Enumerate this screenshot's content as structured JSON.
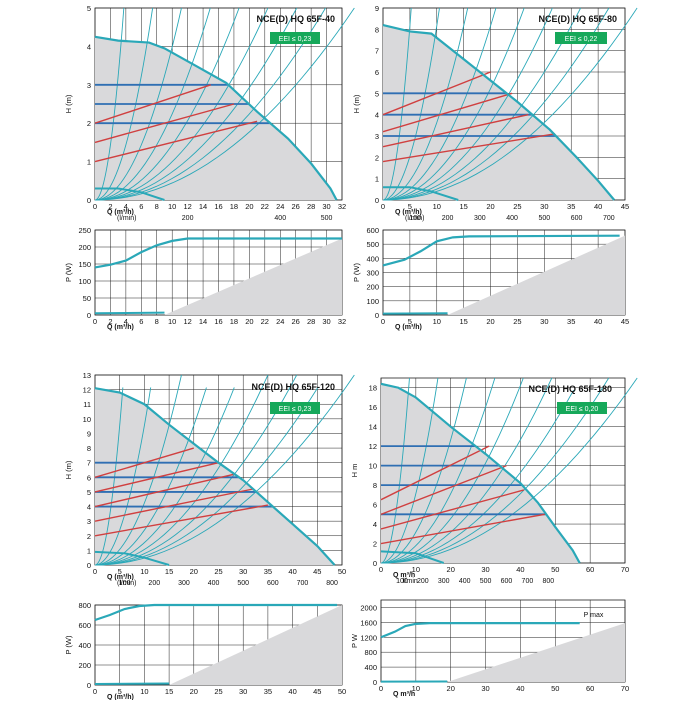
{
  "colors": {
    "envelope": "#2aa8b8",
    "fill": "#d9d9db",
    "blue": "#2f6fb3",
    "red": "#d04040",
    "eei_bg": "#16a85a",
    "grid": "#222222",
    "curve": "#2aa8b8"
  },
  "chart_data": [
    {
      "type": "line",
      "title": "NCE(D) HQ 65F-40",
      "eei": "EEI ≤ 0,23",
      "head": {
        "ylabel": "H (m)",
        "xlabel": "Q (m³/h)",
        "xlabel2": "(l/min)",
        "xticks": [
          "0",
          "2",
          "4",
          "6",
          "8",
          "10",
          "12",
          "14",
          "16",
          "18",
          "20",
          "22",
          "24",
          "26",
          "28",
          "30",
          "32"
        ],
        "yticks": [
          "0",
          "1",
          "2",
          "3",
          "4",
          "5"
        ],
        "x2ticks": [
          "200",
          "400",
          "500"
        ],
        "xlim": [
          0,
          32
        ],
        "ylim": [
          0,
          5
        ],
        "envelope": [
          [
            0,
            4.25
          ],
          [
            3,
            4.15
          ],
          [
            7,
            4.1
          ],
          [
            9,
            3.95
          ],
          [
            13,
            3.5
          ],
          [
            17,
            3.05
          ],
          [
            21,
            2.3
          ],
          [
            25,
            1.6
          ],
          [
            28,
            0.95
          ],
          [
            30.5,
            0.3
          ],
          [
            31.3,
            0
          ]
        ],
        "blue_levels": [
          2,
          2.5,
          3
        ],
        "red_lines": [
          [
            [
              0,
              1.0
            ],
            [
              21,
              2.05
            ]
          ],
          [
            [
              0,
              1.5
            ],
            [
              18,
              2.5
            ]
          ],
          [
            [
              0,
              2.0
            ],
            [
              15,
              3.0
            ]
          ]
        ],
        "min_curve": [
          [
            0,
            0.3
          ],
          [
            3,
            0.3
          ],
          [
            6,
            0.2
          ],
          [
            9,
            0
          ]
        ]
      },
      "power": {
        "ylabel": "P (W)",
        "xlabel": "Q (m³/h)",
        "xticks": [
          "0",
          "2",
          "4",
          "6",
          "8",
          "10",
          "12",
          "14",
          "16",
          "18",
          "20",
          "22",
          "24",
          "26",
          "28",
          "30",
          "32"
        ],
        "yticks": [
          "0",
          "50",
          "100",
          "150",
          "200",
          "250"
        ],
        "xlim": [
          0,
          32
        ],
        "ylim": [
          0,
          250
        ],
        "max_curve": [
          [
            0,
            140
          ],
          [
            2,
            148
          ],
          [
            4,
            160
          ],
          [
            6,
            185
          ],
          [
            8,
            205
          ],
          [
            10,
            218
          ],
          [
            12,
            225
          ],
          [
            32,
            225
          ]
        ],
        "min_curve": [
          [
            0,
            5
          ],
          [
            9,
            7
          ]
        ]
      }
    },
    {
      "type": "line",
      "title": "NCE(D) HQ 65F-80",
      "eei": "EEI ≤ 0,22",
      "head": {
        "ylabel": "H (m)",
        "xlabel": "Q (m³/h)",
        "xlabel2": "(l/min)",
        "xticks": [
          "0",
          "5",
          "10",
          "15",
          "20",
          "25",
          "30",
          "35",
          "40",
          "45"
        ],
        "yticks": [
          "0",
          "1",
          "2",
          "3",
          "4",
          "5",
          "6",
          "7",
          "8",
          "9"
        ],
        "x2ticks": [
          "100",
          "200",
          "300",
          "400",
          "500",
          "600",
          "700"
        ],
        "xlim": [
          0,
          45
        ],
        "ylim": [
          0,
          9
        ],
        "envelope": [
          [
            0,
            8.2
          ],
          [
            5,
            7.9
          ],
          [
            9,
            7.8
          ],
          [
            13,
            7.0
          ],
          [
            19,
            5.8
          ],
          [
            25,
            4.6
          ],
          [
            31,
            3.3
          ],
          [
            36,
            2.0
          ],
          [
            40,
            0.9
          ],
          [
            43,
            0
          ]
        ],
        "blue_levels": [
          3,
          4,
          5
        ],
        "red_lines": [
          [
            [
              0,
              1.8
            ],
            [
              32,
              3.1
            ]
          ],
          [
            [
              0,
              2.5
            ],
            [
              27,
              4.0
            ]
          ],
          [
            [
              0,
              3.2
            ],
            [
              24,
              5.0
            ]
          ],
          [
            [
              0,
              4.0
            ],
            [
              20,
              6.0
            ]
          ]
        ],
        "min_curve": [
          [
            0,
            0.6
          ],
          [
            5,
            0.6
          ],
          [
            9,
            0.4
          ],
          [
            14,
            0
          ]
        ]
      },
      "power": {
        "ylabel": "P (W)",
        "xlabel": "Q (m³/h)",
        "xticks": [
          "0",
          "5",
          "10",
          "15",
          "20",
          "25",
          "30",
          "35",
          "40",
          "45"
        ],
        "yticks": [
          "0",
          "100",
          "200",
          "300",
          "400",
          "500",
          "600"
        ],
        "xlim": [
          0,
          45
        ],
        "ylim": [
          0,
          600
        ],
        "max_curve": [
          [
            0,
            350
          ],
          [
            4,
            390
          ],
          [
            7,
            450
          ],
          [
            10,
            520
          ],
          [
            13,
            548
          ],
          [
            16,
            555
          ],
          [
            44,
            560
          ]
        ],
        "min_curve": [
          [
            0,
            10
          ],
          [
            12,
            12
          ]
        ]
      }
    },
    {
      "type": "line",
      "title": "NCE(D) HQ 65F-120",
      "eei": "EEI ≤ 0,23",
      "head": {
        "ylabel": "H (m)",
        "xlabel": "Q (m³/h)",
        "xlabel2": "(l/min)",
        "xticks": [
          "0",
          "5",
          "10",
          "15",
          "20",
          "25",
          "30",
          "35",
          "40",
          "45",
          "50"
        ],
        "yticks": [
          "0",
          "1",
          "2",
          "3",
          "4",
          "5",
          "6",
          "7",
          "8",
          "9",
          "10",
          "11",
          "12",
          "13"
        ],
        "x2ticks": [
          "100",
          "200",
          "300",
          "400",
          "500",
          "600",
          "700",
          "800"
        ],
        "xlim": [
          0,
          50
        ],
        "ylim": [
          0,
          13
        ],
        "envelope": [
          [
            0,
            12.1
          ],
          [
            5,
            11.8
          ],
          [
            10,
            11.0
          ],
          [
            15,
            9.6
          ],
          [
            20,
            8.3
          ],
          [
            25,
            7.0
          ],
          [
            30,
            5.8
          ],
          [
            35,
            4.3
          ],
          [
            40,
            2.8
          ],
          [
            45,
            1.3
          ],
          [
            48.5,
            0
          ]
        ],
        "blue_levels": [
          4,
          5,
          6,
          7
        ],
        "red_lines": [
          [
            [
              0,
              2.0
            ],
            [
              35,
              4.1
            ]
          ],
          [
            [
              0,
              3.0
            ],
            [
              32,
              5.2
            ]
          ],
          [
            [
              0,
              4.0
            ],
            [
              28,
              6.2
            ]
          ],
          [
            [
              0,
              5.0
            ],
            [
              25,
              7.0
            ]
          ],
          [
            [
              0,
              6.0
            ],
            [
              20,
              8.0
            ]
          ]
        ],
        "min_curve": [
          [
            0,
            0.9
          ],
          [
            6,
            0.8
          ],
          [
            10,
            0.5
          ],
          [
            15,
            0
          ]
        ]
      },
      "power": {
        "ylabel": "P (W)",
        "xlabel": "Q (m³/h)",
        "xticks": [
          "0",
          "5",
          "10",
          "15",
          "20",
          "25",
          "30",
          "35",
          "40",
          "45",
          "50"
        ],
        "yticks": [
          "0",
          "200",
          "400",
          "600",
          "800"
        ],
        "xlim": [
          0,
          50
        ],
        "ylim": [
          0,
          800
        ],
        "max_curve": [
          [
            0,
            650
          ],
          [
            3,
            700
          ],
          [
            6,
            760
          ],
          [
            9,
            790
          ],
          [
            12,
            800
          ],
          [
            49,
            800
          ]
        ],
        "min_curve": [
          [
            0,
            10
          ],
          [
            15,
            15
          ]
        ]
      }
    },
    {
      "type": "line",
      "title": "NCE(D) HQ 65F-180",
      "eei": "EEI ≤ 0,20",
      "head": {
        "ylabel": "H m",
        "xlabel": "Q m³/h",
        "xlabel2": "l/min",
        "xticks": [
          "0",
          "10",
          "20",
          "30",
          "40",
          "50",
          "60",
          "70"
        ],
        "yticks": [
          "0",
          "2",
          "4",
          "6",
          "8",
          "10",
          "12",
          "14",
          "16",
          "18"
        ],
        "x2ticks": [
          "100",
          "200",
          "300",
          "400",
          "500",
          "600",
          "700",
          "800"
        ],
        "xlim": [
          0,
          70
        ],
        "ylim": [
          0,
          19
        ],
        "envelope": [
          [
            0,
            18.4
          ],
          [
            5,
            18.0
          ],
          [
            10,
            17.0
          ],
          [
            15,
            15.5
          ],
          [
            20,
            14.0
          ],
          [
            25,
            12.6
          ],
          [
            30,
            11.2
          ],
          [
            35,
            9.7
          ],
          [
            40,
            8.2
          ],
          [
            45,
            6.2
          ],
          [
            50,
            3.7
          ],
          [
            55,
            1.3
          ],
          [
            57,
            0
          ]
        ],
        "blue_levels": [
          5,
          8,
          10,
          12
        ],
        "red_lines": [
          [
            [
              0,
              2.0
            ],
            [
              47,
              5.0
            ]
          ],
          [
            [
              0,
              3.5
            ],
            [
              41,
              7.5
            ]
          ],
          [
            [
              0,
              5.0
            ],
            [
              36,
              10.0
            ]
          ],
          [
            [
              0,
              6.5
            ],
            [
              31,
              12.0
            ]
          ]
        ],
        "min_curve": [
          [
            0,
            1.2
          ],
          [
            10,
            1.0
          ],
          [
            14,
            0.5
          ],
          [
            18,
            0
          ]
        ]
      },
      "power": {
        "ylabel": "P W",
        "xlabel": "Q m³/h",
        "xticks": [
          "0",
          "10",
          "20",
          "30",
          "40",
          "50",
          "60",
          "70"
        ],
        "yticks": [
          "0",
          "400",
          "800",
          "1200",
          "1600",
          "2000"
        ],
        "xlim": [
          0,
          70
        ],
        "ylim": [
          0,
          2200
        ],
        "max_curve": [
          [
            0,
            1200
          ],
          [
            4,
            1350
          ],
          [
            7,
            1500
          ],
          [
            10,
            1560
          ],
          [
            14,
            1580
          ],
          [
            57,
            1580
          ]
        ],
        "min_curve": [
          [
            0,
            10
          ],
          [
            19,
            15
          ]
        ],
        "pmax_label": "P max"
      }
    }
  ]
}
